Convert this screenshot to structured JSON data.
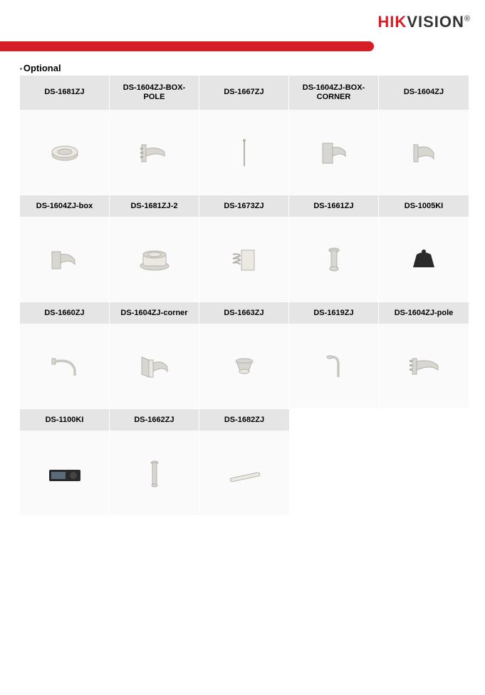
{
  "logo": {
    "part1": "HIK",
    "part2": "VISION"
  },
  "section_title": "Optional",
  "colors": {
    "brand_red": "#d41f26",
    "header_bg": "#e5e5e5",
    "cell_bg": "#fafafa",
    "product_fill": "#d8d6d0",
    "product_stroke": "#b5b2aa",
    "dark_fill": "#2a2a2a"
  },
  "rows": [
    [
      {
        "label": "DS-1681ZJ",
        "icon": "mount-ring"
      },
      {
        "label": "DS-1604ZJ-BOX-POLE",
        "icon": "pole-bracket"
      },
      {
        "label": "DS-1667ZJ",
        "icon": "thin-pole"
      },
      {
        "label": "DS-1604ZJ-BOX-CORNER",
        "icon": "corner-box"
      },
      {
        "label": "DS-1604ZJ",
        "icon": "wall-arm"
      }
    ],
    [
      {
        "label": "DS-1604ZJ-box",
        "icon": "box-arm"
      },
      {
        "label": "DS-1681ZJ-2",
        "icon": "adapter-ring"
      },
      {
        "label": "DS-1673ZJ",
        "icon": "spring-plate"
      },
      {
        "label": "DS-1661ZJ",
        "icon": "pendant-short"
      },
      {
        "label": "DS-1005KI",
        "icon": "joystick-dark"
      }
    ],
    [
      {
        "label": "DS-1660ZJ",
        "icon": "gooseneck"
      },
      {
        "label": "DS-1604ZJ-corner",
        "icon": "corner-arm"
      },
      {
        "label": "DS-1663ZJ",
        "icon": "ceiling-adapter"
      },
      {
        "label": "DS-1619ZJ",
        "icon": "swan-neck"
      },
      {
        "label": "DS-1604ZJ-pole",
        "icon": "pole-arm"
      }
    ],
    [
      {
        "label": "DS-1100KI",
        "icon": "keyboard-dark"
      },
      {
        "label": "DS-1662ZJ",
        "icon": "pendant-tube"
      },
      {
        "label": "DS-1682ZJ",
        "icon": "long-tube"
      }
    ]
  ]
}
